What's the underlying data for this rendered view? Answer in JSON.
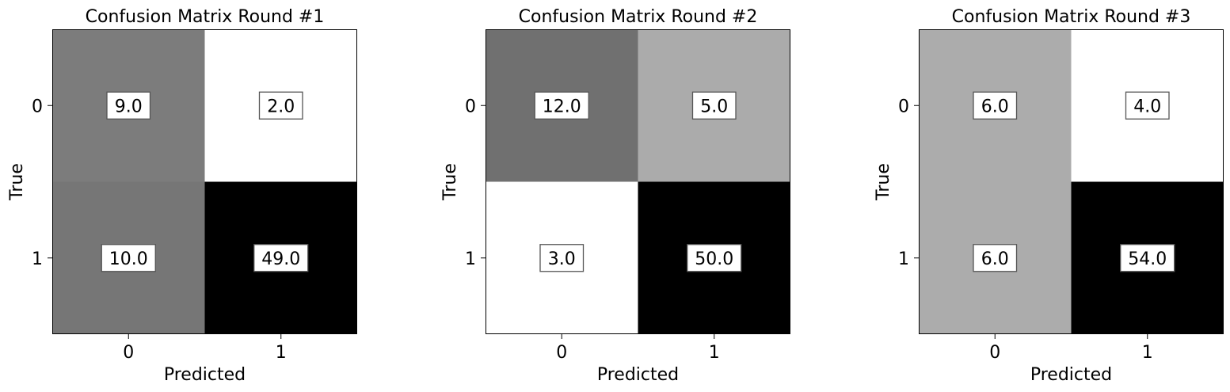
{
  "chart_data": [
    {
      "type": "heatmap",
      "title": "Confusion Matrix Round #1",
      "xlabel": "Predicted",
      "ylabel": "True",
      "x_categories": [
        "0",
        "1"
      ],
      "y_categories": [
        "0",
        "1"
      ],
      "values": [
        [
          9.0,
          2.0
        ],
        [
          10.0,
          49.0
        ]
      ],
      "labels": [
        [
          "9.0",
          "2.0"
        ],
        [
          "10.0",
          "49.0"
        ]
      ],
      "colormap": "greys"
    },
    {
      "type": "heatmap",
      "title": "Confusion Matrix Round #2",
      "xlabel": "Predicted",
      "ylabel": "True",
      "x_categories": [
        "0",
        "1"
      ],
      "y_categories": [
        "0",
        "1"
      ],
      "values": [
        [
          12.0,
          5.0
        ],
        [
          3.0,
          50.0
        ]
      ],
      "labels": [
        [
          "12.0",
          "5.0"
        ],
        [
          "3.0",
          "50.0"
        ]
      ],
      "colormap": "greys"
    },
    {
      "type": "heatmap",
      "title": "Confusion Matrix Round #3",
      "xlabel": "Predicted",
      "ylabel": "True",
      "x_categories": [
        "0",
        "1"
      ],
      "y_categories": [
        "0",
        "1"
      ],
      "values": [
        [
          6.0,
          4.0
        ],
        [
          6.0,
          54.0
        ]
      ],
      "labels": [
        [
          "6.0",
          "4.0"
        ],
        [
          "6.0",
          "54.0"
        ]
      ],
      "colormap": "greys"
    }
  ]
}
